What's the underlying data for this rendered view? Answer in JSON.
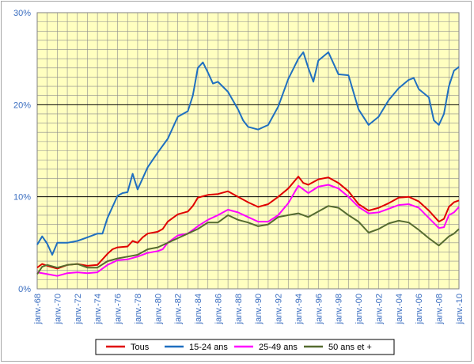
{
  "chart_data": {
    "type": "line",
    "title": "",
    "xlabel": "",
    "ylabel": "",
    "x_range": [
      1968,
      2010
    ],
    "ylim": [
      0,
      30
    ],
    "y_ticks": [
      "0%",
      "10%",
      "20%",
      "30%"
    ],
    "y_tick_values": [
      0,
      10,
      20,
      30
    ],
    "x_ticks": [
      "janv.-68",
      "janv.-70",
      "janv.-72",
      "janv.-74",
      "janv.-76",
      "janv.-78",
      "janv.-80",
      "janv.-82",
      "janv.-84",
      "janv.-86",
      "janv.-88",
      "janv.-90",
      "janv.-92",
      "janv.-94",
      "janv.-96",
      "janv.-98",
      "janv.-00",
      "janv.-02",
      "janv.-04",
      "janv.-06",
      "janv.-08",
      "janv.-10"
    ],
    "x_tick_values": [
      1968,
      1970,
      1972,
      1974,
      1976,
      1978,
      1980,
      1982,
      1984,
      1986,
      1988,
      1990,
      1992,
      1994,
      1996,
      1998,
      2000,
      2002,
      2004,
      2006,
      2008,
      2010
    ],
    "grid": true,
    "plot_background": "#ffffc0",
    "legend_position": "bottom",
    "series": [
      {
        "name": "Tous",
        "color": "#e00000",
        "points": [
          [
            1968,
            2.3
          ],
          [
            1968.5,
            2.7
          ],
          [
            1969,
            2.5
          ],
          [
            1970,
            2.2
          ],
          [
            1971,
            2.6
          ],
          [
            1972,
            2.7
          ],
          [
            1973,
            2.5
          ],
          [
            1974,
            2.6
          ],
          [
            1975,
            3.8
          ],
          [
            1975.5,
            4.3
          ],
          [
            1976,
            4.5
          ],
          [
            1977,
            4.6
          ],
          [
            1977.5,
            5.2
          ],
          [
            1978,
            5.0
          ],
          [
            1978.5,
            5.6
          ],
          [
            1979,
            6.0
          ],
          [
            1980,
            6.2
          ],
          [
            1980.5,
            6.5
          ],
          [
            1981,
            7.3
          ],
          [
            1982,
            8.1
          ],
          [
            1983,
            8.4
          ],
          [
            1983.5,
            9.0
          ],
          [
            1984,
            9.9
          ],
          [
            1985,
            10.2
          ],
          [
            1986,
            10.3
          ],
          [
            1987,
            10.6
          ],
          [
            1988,
            10.0
          ],
          [
            1989,
            9.4
          ],
          [
            1990,
            8.9
          ],
          [
            1991,
            9.2
          ],
          [
            1992,
            10.0
          ],
          [
            1993,
            10.9
          ],
          [
            1994,
            12.2
          ],
          [
            1994.5,
            11.5
          ],
          [
            1995,
            11.3
          ],
          [
            1996,
            11.9
          ],
          [
            1997,
            12.1
          ],
          [
            1998,
            11.5
          ],
          [
            1999,
            10.6
          ],
          [
            2000,
            9.2
          ],
          [
            2001,
            8.5
          ],
          [
            2002,
            8.8
          ],
          [
            2003,
            9.3
          ],
          [
            2004,
            9.9
          ],
          [
            2005,
            10.0
          ],
          [
            2006,
            9.5
          ],
          [
            2007,
            8.5
          ],
          [
            2008,
            7.3
          ],
          [
            2008.5,
            7.6
          ],
          [
            2009,
            8.9
          ],
          [
            2009.5,
            9.4
          ],
          [
            2010,
            9.6
          ]
        ]
      },
      {
        "name": "15-24 ans",
        "color": "#1f6fc0",
        "points": [
          [
            1968,
            4.8
          ],
          [
            1968.5,
            5.7
          ],
          [
            1969,
            4.9
          ],
          [
            1969.5,
            3.7
          ],
          [
            1970,
            5.0
          ],
          [
            1971,
            5.0
          ],
          [
            1972,
            5.2
          ],
          [
            1973,
            5.6
          ],
          [
            1974,
            6.0
          ],
          [
            1974.5,
            6.0
          ],
          [
            1975,
            7.7
          ],
          [
            1976,
            10.1
          ],
          [
            1976.5,
            10.4
          ],
          [
            1977,
            10.5
          ],
          [
            1977.5,
            12.5
          ],
          [
            1978,
            10.8
          ],
          [
            1979,
            13.2
          ],
          [
            1980,
            14.8
          ],
          [
            1981,
            16.3
          ],
          [
            1982,
            18.7
          ],
          [
            1983,
            19.3
          ],
          [
            1983.5,
            21.0
          ],
          [
            1984,
            24.0
          ],
          [
            1984.5,
            24.6
          ],
          [
            1985,
            23.5
          ],
          [
            1985.5,
            22.3
          ],
          [
            1986,
            22.5
          ],
          [
            1987,
            21.4
          ],
          [
            1988,
            19.5
          ],
          [
            1988.5,
            18.3
          ],
          [
            1989,
            17.6
          ],
          [
            1990,
            17.3
          ],
          [
            1991,
            17.8
          ],
          [
            1992,
            19.8
          ],
          [
            1993,
            22.8
          ],
          [
            1994,
            25.0
          ],
          [
            1994.5,
            25.7
          ],
          [
            1995,
            24.0
          ],
          [
            1995.5,
            22.5
          ],
          [
            1996,
            24.8
          ],
          [
            1997,
            25.7
          ],
          [
            1998,
            23.3
          ],
          [
            1999,
            23.2
          ],
          [
            2000,
            19.5
          ],
          [
            2001,
            17.8
          ],
          [
            2002,
            18.7
          ],
          [
            2003,
            20.5
          ],
          [
            2004,
            21.8
          ],
          [
            2005,
            22.7
          ],
          [
            2005.5,
            22.9
          ],
          [
            2006,
            21.7
          ],
          [
            2007,
            20.8
          ],
          [
            2007.5,
            18.3
          ],
          [
            2008,
            17.8
          ],
          [
            2008.5,
            19.0
          ],
          [
            2009,
            22.0
          ],
          [
            2009.5,
            23.7
          ],
          [
            2010,
            24.1
          ]
        ]
      },
      {
        "name": "25-49 ans",
        "color": "#ff00ff",
        "points": [
          [
            1968,
            1.8
          ],
          [
            1969,
            1.6
          ],
          [
            1970,
            1.4
          ],
          [
            1971,
            1.7
          ],
          [
            1972,
            1.8
          ],
          [
            1973,
            1.7
          ],
          [
            1974,
            1.8
          ],
          [
            1975,
            2.6
          ],
          [
            1976,
            3.1
          ],
          [
            1977,
            3.2
          ],
          [
            1978,
            3.5
          ],
          [
            1979,
            3.9
          ],
          [
            1980,
            4.1
          ],
          [
            1980.5,
            4.3
          ],
          [
            1981,
            5.0
          ],
          [
            1982,
            5.8
          ],
          [
            1983,
            6.0
          ],
          [
            1984,
            6.8
          ],
          [
            1985,
            7.5
          ],
          [
            1986,
            8.0
          ],
          [
            1987,
            8.6
          ],
          [
            1988,
            8.3
          ],
          [
            1989,
            7.8
          ],
          [
            1990,
            7.3
          ],
          [
            1991,
            7.3
          ],
          [
            1992,
            8.0
          ],
          [
            1993,
            9.3
          ],
          [
            1994,
            11.2
          ],
          [
            1995,
            10.4
          ],
          [
            1996,
            11.1
          ],
          [
            1997,
            11.3
          ],
          [
            1998,
            10.9
          ],
          [
            1999,
            10.0
          ],
          [
            2000,
            8.9
          ],
          [
            2001,
            8.2
          ],
          [
            2002,
            8.3
          ],
          [
            2003,
            8.7
          ],
          [
            2004,
            9.1
          ],
          [
            2005,
            9.2
          ],
          [
            2006,
            8.8
          ],
          [
            2007,
            7.7
          ],
          [
            2008,
            6.6
          ],
          [
            2008.5,
            6.7
          ],
          [
            2009,
            8.0
          ],
          [
            2009.5,
            8.3
          ],
          [
            2010,
            8.9
          ]
        ]
      },
      {
        "name": "50 ans et +",
        "color": "#556b2f",
        "points": [
          [
            1968,
            1.6
          ],
          [
            1968.5,
            2.4
          ],
          [
            1969,
            2.6
          ],
          [
            1970,
            2.3
          ],
          [
            1971,
            2.6
          ],
          [
            1972,
            2.7
          ],
          [
            1973,
            2.3
          ],
          [
            1974,
            2.3
          ],
          [
            1975,
            3.0
          ],
          [
            1976,
            3.3
          ],
          [
            1977,
            3.5
          ],
          [
            1978,
            3.7
          ],
          [
            1979,
            4.3
          ],
          [
            1980,
            4.5
          ],
          [
            1981,
            5.0
          ],
          [
            1982,
            5.5
          ],
          [
            1983,
            6.0
          ],
          [
            1984,
            6.5
          ],
          [
            1985,
            7.2
          ],
          [
            1986,
            7.2
          ],
          [
            1987,
            8.0
          ],
          [
            1988,
            7.5
          ],
          [
            1989,
            7.2
          ],
          [
            1990,
            6.8
          ],
          [
            1991,
            7.0
          ],
          [
            1992,
            7.8
          ],
          [
            1993,
            8.0
          ],
          [
            1994,
            8.2
          ],
          [
            1995,
            7.8
          ],
          [
            1996,
            8.4
          ],
          [
            1997,
            9.0
          ],
          [
            1998,
            8.8
          ],
          [
            1999,
            8.0
          ],
          [
            2000,
            7.3
          ],
          [
            2001,
            6.1
          ],
          [
            2002,
            6.5
          ],
          [
            2003,
            7.1
          ],
          [
            2004,
            7.4
          ],
          [
            2005,
            7.2
          ],
          [
            2006,
            6.4
          ],
          [
            2007,
            5.5
          ],
          [
            2008,
            4.7
          ],
          [
            2008.5,
            5.2
          ],
          [
            2009,
            5.7
          ],
          [
            2009.5,
            6.0
          ],
          [
            2010,
            6.5
          ]
        ]
      }
    ]
  }
}
